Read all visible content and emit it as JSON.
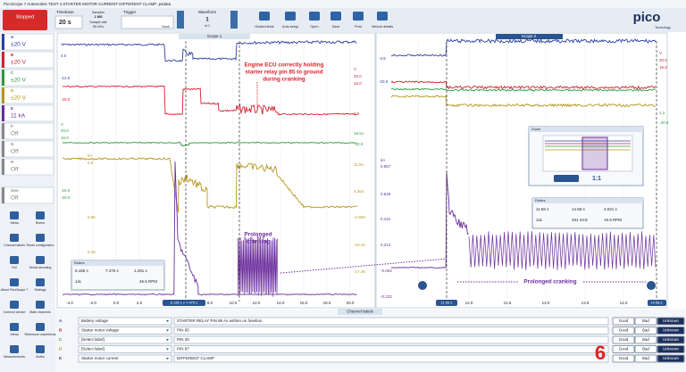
{
  "window_title": "PicoScope 7 Automotive TEST 4 STARTER MOTOR CURRENT DIFFERENT CLAMP .psdata",
  "toolbar": {
    "status": "Stopped",
    "timebase_label": "Timebase",
    "timebase": "20 s",
    "samples_label": "Samples",
    "samples": "1 MS",
    "rate_label": "Sample rate",
    "rate": "50 kS/s",
    "trigger_label": "Trigger",
    "trigger": "None",
    "waveform_label": "Waveform",
    "waveform": "1",
    "waveform_count": "of 1",
    "buttons": [
      "Guided tests",
      "Auto setup",
      "Open",
      "Save",
      "Print",
      "Vehicle details"
    ]
  },
  "logo": "pico",
  "logo_sub": "Technology",
  "channels": [
    {
      "id": "A",
      "range": "±20 V",
      "color": "#2b3fa0"
    },
    {
      "id": "B",
      "range": "±20 V",
      "color": "#d0202e"
    },
    {
      "id": "C",
      "range": "±20 V",
      "color": "#2e9a3c"
    },
    {
      "id": "D",
      "range": "±20 V",
      "color": "#b8961e"
    },
    {
      "id": "E",
      "range": "11 kA",
      "color": "#6a2c9c"
    },
    {
      "id": "F",
      "range": "Off",
      "color": "#888888"
    },
    {
      "id": "G",
      "range": "Off",
      "color": "#888888"
    },
    {
      "id": "H",
      "range": "Off",
      "color": "#888888"
    },
    {
      "id": "Gen",
      "range": "Off",
      "color": "#888888"
    }
  ],
  "tools": [
    "Views",
    "Rulers",
    "Channel labels",
    "Reset configuration",
    "Full",
    "Serial decoding",
    "About PicoScope 7",
    "Settings",
    "Connect device",
    "Math channels",
    "Views",
    "Reference waveforms",
    "Measurements",
    "Notes"
  ],
  "scope1": {
    "tab": "Scope 1",
    "xticks": [
      "-4.0",
      "-2.0",
      "0.0",
      "2.0",
      "8.0",
      "10.0",
      "12.0",
      "14.0",
      "16.0",
      "18.0",
      "20.0"
    ],
    "cursor_label": "6.185 s x 7.475 s",
    "annotation": [
      "Engine ECU correctly holding",
      "starter relay pin 85 to ground",
      "during cranking"
    ],
    "cranking": [
      "Prolonged",
      "cranking"
    ],
    "rulers": {
      "title": "Rulers",
      "start": "6.185 s",
      "end": "7.475 s",
      "delta": "1.291 s",
      "inv_label": "1/Δ",
      "rpm": "46.5 RPM"
    },
    "axes": [
      {
        "color": "#2b3fa0",
        "labels": [
          "V",
          "4.0",
          "-12.0"
        ]
      },
      {
        "color": "#d0202e",
        "labels": [
          "-20.0"
        ]
      },
      {
        "color": "#2e9a3c",
        "labels": [
          "V",
          "20.0",
          "16.0",
          "-16.0",
          "-20.0"
        ]
      },
      {
        "color": "#b8961e",
        "labels": [
          "kA",
          "0.6",
          "0.56",
          "0.16"
        ]
      },
      {
        "color": "#d0202e",
        "labels": [
          "V",
          "20.0",
          "16.0",
          "0.0"
        ]
      },
      {
        "color": "#2e9a3c",
        "labels": [
          "16.51",
          "-20.0"
        ]
      },
      {
        "color": "#b8961e",
        "labels": [
          "11.64",
          "4.364",
          "-2.909",
          "-10.18",
          "-17.45"
        ]
      }
    ]
  },
  "scope2": {
    "tab": "Scope 2",
    "xticks": [
      "12.0",
      "12.5",
      "13.0",
      "13.5",
      "14.0"
    ],
    "start_label": "11.56 s",
    "end_label": "14.58 s",
    "cranking": "Prolonged cranking",
    "zoom_title": "Zoom",
    "zoom_ratio": "1:1",
    "rulers": {
      "title": "Rulers",
      "start": "11.56 s",
      "end": "14.58 s",
      "delta": "3.021 s",
      "inv_label": "1/Δ",
      "freq": "331 mHz",
      "rpm": "19.9 RPM"
    },
    "axes": [
      {
        "color": "#2b3fa0",
        "labels": [
          "-3.6",
          "-20.0"
        ]
      },
      {
        "color": "#6a2c9c",
        "labels": [
          "kA",
          "0.867",
          "0.649",
          "0.431",
          "0.213",
          "-0.004",
          "-0.222"
        ]
      },
      {
        "color": "#d0202e",
        "labels": [
          "V",
          "20.0",
          "16.0"
        ]
      },
      {
        "color": "#2e9a3c",
        "labels": [
          "1.2",
          "-20.0"
        ]
      }
    ]
  },
  "channel_labels_tab": "Channel labels",
  "channel_labels": [
    {
      "id": "A",
      "label": "Battery voltage",
      "note": "STARTER RELAY PIN 86 As written on fusebox"
    },
    {
      "id": "B",
      "label": "Starter motor voltage",
      "note": "PIN 85"
    },
    {
      "id": "C",
      "label": "[Select label]",
      "note": "PIN 30"
    },
    {
      "id": "D",
      "label": "[Select label]",
      "note": "PIN 87"
    },
    {
      "id": "E",
      "label": "Starter motor current",
      "note": "DIFFERENT CLAMP"
    }
  ],
  "verdicts": [
    "Good",
    "Bad",
    "Unknown"
  ],
  "page_number": "6"
}
